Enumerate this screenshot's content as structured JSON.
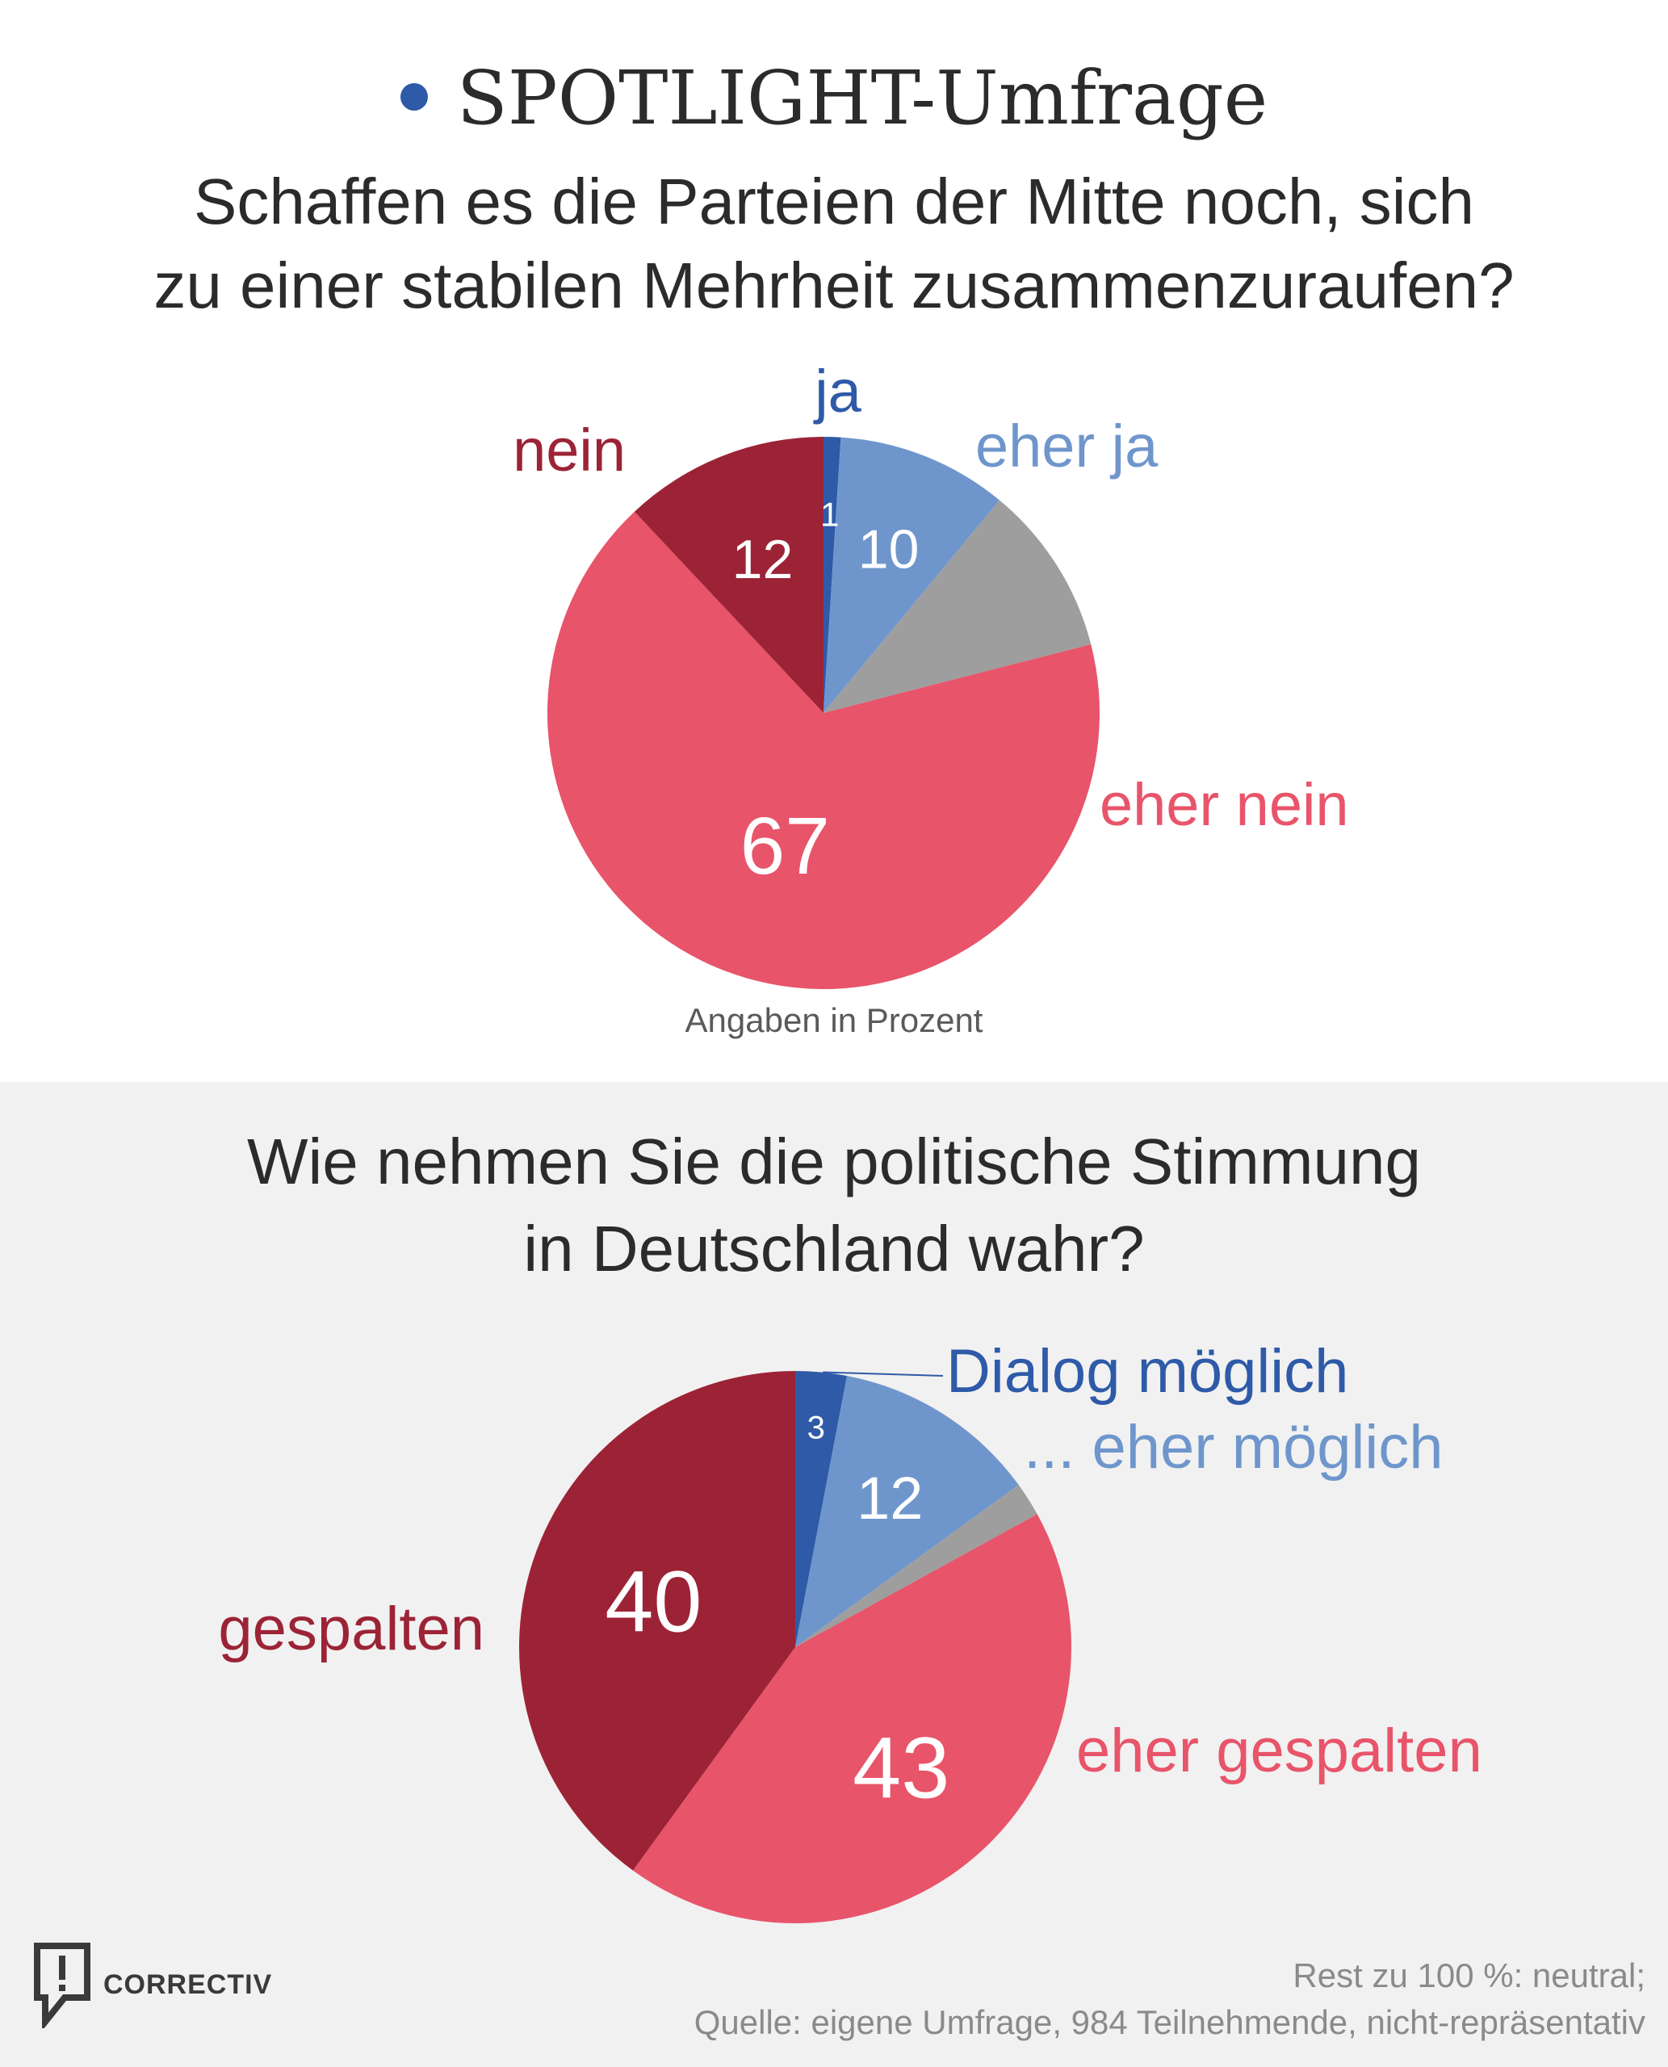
{
  "header": {
    "brand": "SPOTLIGHT-Umfrage",
    "question1_line1": "Schaffen es die Parteien der Mitte noch, sich",
    "question1_line2": "zu einer stabilen Mehrheit zusammenzuraufen?",
    "question2_line1": "Wie nehmen Sie die politische Stimmung",
    "question2_line2": "in Deutschland wahr?"
  },
  "note": "Angaben in Prozent",
  "footer": {
    "line1": "Rest zu 100 %: neutral;",
    "line2": "Quelle: eigene Umfrage, 984 Teilnehmende, nicht-repräsentativ"
  },
  "logo": {
    "text": "CORRECTIV",
    "icon": "speech-bubble-exclamation-icon"
  },
  "colors": {
    "accent": "#2e5aa8",
    "dark_blue": "#2e5aa8",
    "light_blue": "#6f96cc",
    "grey": "#9e9e9e",
    "pink": "#e8546a",
    "dark_red": "#9c2336"
  },
  "chart_data": [
    {
      "type": "pie",
      "title": "Schaffen es die Parteien der Mitte noch, sich zu einer stabilen Mehrheit zusammenzuraufen?",
      "unit": "Prozent",
      "slices": [
        {
          "name": "ja",
          "value": 1,
          "label": "1",
          "color": "#2e5aa8"
        },
        {
          "name": "eher ja",
          "value": 10,
          "label": "10",
          "color": "#6f96cc"
        },
        {
          "name": "",
          "value": 10,
          "label": "",
          "color": "#9e9e9e"
        },
        {
          "name": "eher nein",
          "value": 67,
          "label": "67",
          "color": "#e8546a"
        },
        {
          "name": "nein",
          "value": 12,
          "label": "12",
          "color": "#9c2336"
        }
      ]
    },
    {
      "type": "pie",
      "title": "Wie nehmen Sie die politische Stimmung in Deutschland wahr?",
      "unit": "Prozent",
      "slices": [
        {
          "name": "Dialog möglich",
          "value": 3,
          "label": "3",
          "color": "#2e5aa8"
        },
        {
          "name": "... eher möglich",
          "value": 12,
          "label": "12",
          "color": "#6f96cc"
        },
        {
          "name": "",
          "value": 2,
          "label": "",
          "color": "#9e9e9e"
        },
        {
          "name": "eher gespalten",
          "value": 43,
          "label": "43",
          "color": "#e8546a"
        },
        {
          "name": "gespalten",
          "value": 40,
          "label": "40",
          "color": "#9c2336"
        }
      ]
    }
  ]
}
